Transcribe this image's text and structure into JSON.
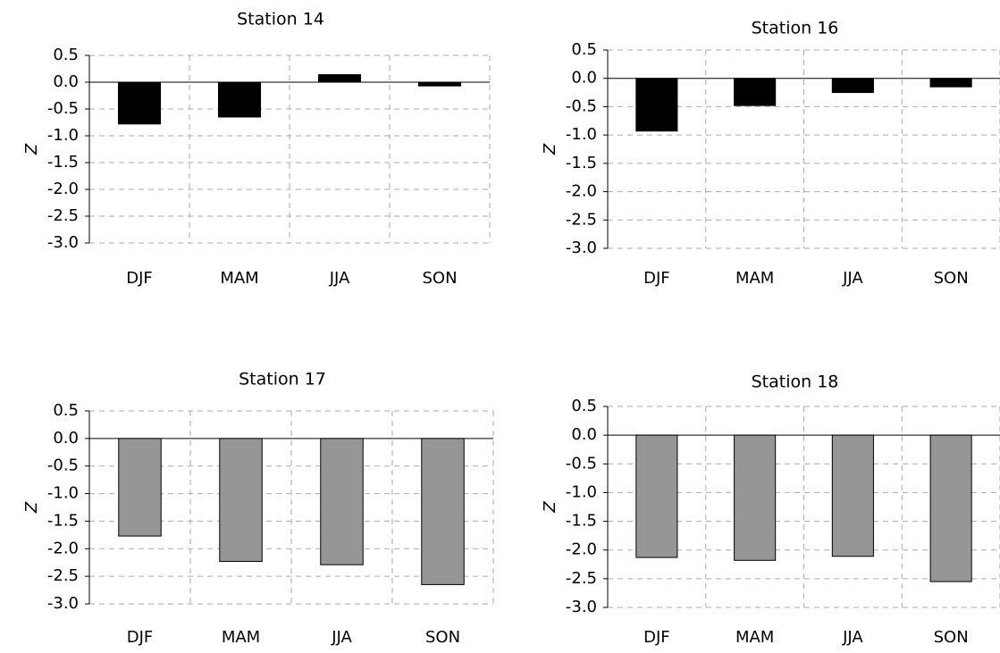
{
  "chart_data": [
    {
      "type": "bar",
      "title": "Station 14",
      "y_label": "Z",
      "color": "#000000",
      "categories": [
        "DJF",
        "MAM",
        "JJA",
        "SON"
      ],
      "values": [
        -0.78,
        -0.65,
        0.14,
        -0.07
      ],
      "ylim": [
        -3.0,
        0.5
      ],
      "yticks": [
        0.5,
        {
          "value": 0,
          "label": "0.0"
        },
        -0.5,
        {
          "value": -1,
          "label": "-1.0"
        },
        -1.5,
        {
          "value": -2,
          "label": "-2.0"
        },
        -2.5,
        {
          "value": -3,
          "label": "-3.0"
        }
      ],
      "grid": true
    },
    {
      "type": "bar",
      "title": "Station 16",
      "y_label": "Z",
      "color": "#000000",
      "categories": [
        "DJF",
        "MAM",
        "JJA",
        "SON"
      ],
      "values": [
        -0.93,
        -0.48,
        -0.25,
        -0.15
      ],
      "ylim": [
        -3.0,
        0.5
      ],
      "yticks": [
        0.5,
        {
          "value": 0,
          "label": "0.0"
        },
        -0.5,
        {
          "value": -1,
          "label": "-1.0"
        },
        -1.5,
        {
          "value": -2,
          "label": "-2.0"
        },
        -2.5,
        {
          "value": -3,
          "label": "-3.0"
        }
      ],
      "grid": true
    },
    {
      "type": "bar",
      "title": "Station 17",
      "y_label": "Z",
      "color": "#969696",
      "categories": [
        "DJF",
        "MAM",
        "JJA",
        "SON"
      ],
      "values": [
        -1.77,
        -2.23,
        -2.29,
        -2.65
      ],
      "ylim": [
        -3.0,
        0.5
      ],
      "yticks": [
        0.5,
        {
          "value": 0,
          "label": "0.0"
        },
        -0.5,
        {
          "value": -1,
          "label": "-1.0"
        },
        -1.5,
        {
          "value": -2,
          "label": "-2.0"
        },
        -2.5,
        {
          "value": -3,
          "label": "-3.0"
        }
      ],
      "grid": true
    },
    {
      "type": "bar",
      "title": "Station 18",
      "y_label": "Z",
      "color": "#969696",
      "categories": [
        "DJF",
        "MAM",
        "JJA",
        "SON"
      ],
      "values": [
        -2.13,
        -2.18,
        -2.11,
        -2.55
      ],
      "ylim": [
        -3.0,
        0.5
      ],
      "yticks": [
        0.5,
        {
          "value": 0,
          "label": "0.0"
        },
        -0.5,
        {
          "value": -1,
          "label": "-1.0"
        },
        -1.5,
        {
          "value": -2,
          "label": "-2.0"
        },
        -2.5,
        {
          "value": -3,
          "label": "-3.0"
        }
      ],
      "grid": true
    }
  ]
}
